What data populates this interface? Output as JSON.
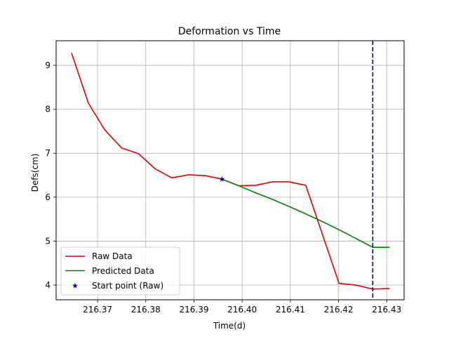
{
  "chart_data": {
    "type": "line",
    "title": "Deformation vs Time",
    "xlabel": "Time(d)",
    "ylabel": "Defs(cm)",
    "xlim": [
      216.3614,
      216.4336
    ],
    "ylim": [
      3.665,
      9.56
    ],
    "xticks": [
      216.37,
      216.38,
      216.39,
      216.4,
      216.41,
      216.42,
      216.43
    ],
    "xtick_labels": [
      "216.37",
      "216.38",
      "216.39",
      "216.40",
      "216.41",
      "216.42",
      "216.43"
    ],
    "yticks": [
      4,
      5,
      6,
      7,
      8,
      9
    ],
    "ytick_labels": [
      "4",
      "5",
      "6",
      "7",
      "8",
      "9"
    ],
    "grid": true,
    "legend_position": "lower-left",
    "series": [
      {
        "name": "Raw Data",
        "color": "#e00000",
        "style": "solid",
        "x": [
          216.3646,
          216.3681,
          216.3715,
          216.375,
          216.3785,
          216.3819,
          216.3854,
          216.3889,
          216.3924,
          216.3958,
          216.3993,
          216.4028,
          216.4063,
          216.4097,
          216.4132,
          216.4201,
          216.4236,
          216.4271,
          216.4306
        ],
        "y": [
          9.28,
          8.14,
          7.53,
          7.12,
          6.99,
          6.65,
          6.44,
          6.51,
          6.49,
          6.41,
          6.26,
          6.27,
          6.35,
          6.35,
          6.27,
          4.04,
          4.0,
          3.91,
          3.92
        ]
      },
      {
        "name": "Predicted Data",
        "color": "#008000",
        "style": "solid",
        "x": [
          216.3958,
          216.3993,
          216.4028,
          216.4063,
          216.4097,
          216.4132,
          216.4167,
          216.4201,
          216.4236,
          216.4271,
          216.4306
        ],
        "y": [
          6.41,
          6.26,
          6.1,
          5.95,
          5.79,
          5.62,
          5.44,
          5.26,
          5.06,
          4.86,
          4.86
        ]
      },
      {
        "name": "Start point (Raw)",
        "color": "#0000cc",
        "marker": "star",
        "x": [
          216.3958
        ],
        "y": [
          6.41
        ]
      }
    ],
    "vlines": [
      {
        "x": 216.4271,
        "color": "#00008b",
        "style": "dashed"
      }
    ]
  }
}
